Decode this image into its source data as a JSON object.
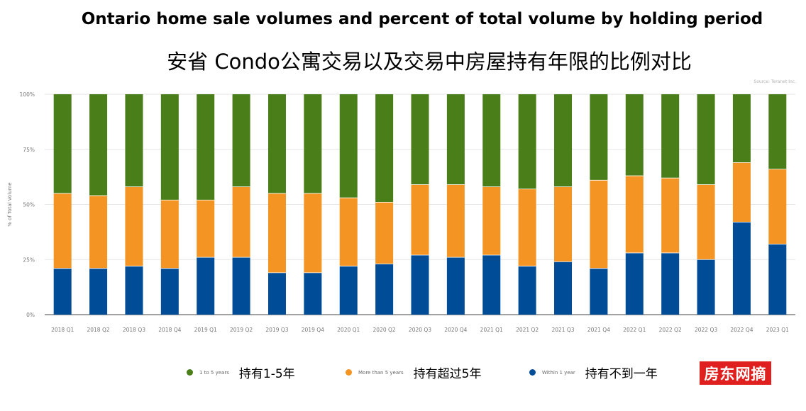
{
  "header": {
    "title_en": "Ontario home sale volumes and percent of total volume by holding period",
    "title_zh": "安省 Condo公寓交易以及交易中房屋持有年限的比例对比",
    "source": "Source: Teranet Inc."
  },
  "legend": {
    "items": [
      {
        "label": "1 to 5 years",
        "label_zh": "持有1-5年"
      },
      {
        "label": "More than 5 years",
        "label_zh": "持有超过5年"
      },
      {
        "label": "Within 1 year",
        "label_zh": "持有不到一年"
      }
    ]
  },
  "watermark": "房东网摘",
  "chart_data": {
    "type": "bar",
    "stacked": true,
    "ylabel": "% of Total Volume",
    "ylim": [
      0,
      100
    ],
    "yticks": [
      "0%",
      "25%",
      "50%",
      "75%",
      "100%"
    ],
    "grid": true,
    "legend_position": "bottom",
    "categories": [
      "2018 Q1",
      "2018 Q2",
      "2018 Q3",
      "2018 Q4",
      "2019 Q1",
      "2019 Q2",
      "2019 Q3",
      "2019 Q4",
      "2020 Q1",
      "2020 Q2",
      "2020 Q3",
      "2020 Q4",
      "2021 Q1",
      "2021 Q2",
      "2021 Q3",
      "2021 Q4",
      "2022 Q1",
      "2022 Q2",
      "2022 Q3",
      "2022 Q4",
      "2023 Q1"
    ],
    "series": [
      {
        "name": "Within 1 year",
        "color": "#004c97",
        "values": [
          21,
          21,
          22,
          21,
          26,
          26,
          19,
          19,
          22,
          23,
          27,
          26,
          27,
          22,
          24,
          21,
          28,
          28,
          25,
          42,
          32
        ]
      },
      {
        "name": "More than 5 years",
        "color": "#f39423",
        "values": [
          34,
          33,
          36,
          31,
          26,
          32,
          36,
          36,
          31,
          28,
          32,
          33,
          31,
          35,
          34,
          40,
          35,
          34,
          34,
          27,
          34
        ]
      },
      {
        "name": "1 to 5 years",
        "color": "#4a7e18",
        "values": [
          45,
          46,
          42,
          48,
          48,
          42,
          45,
          45,
          47,
          49,
          41,
          41,
          42,
          43,
          42,
          39,
          37,
          38,
          41,
          31,
          34
        ]
      }
    ]
  }
}
